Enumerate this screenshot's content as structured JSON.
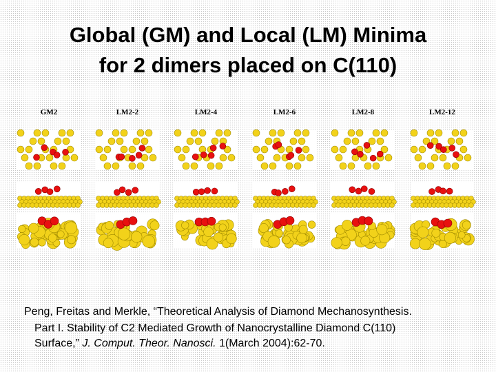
{
  "header": {
    "title_line1": "Global (GM) and Local (LM) Minima",
    "title_line2": "for 2 dimers placed on C(110)"
  },
  "figure": {
    "labels": [
      "GM2",
      "LM2-2",
      "LM2-4",
      "LM2-6",
      "LM2-8",
      "LM2-12"
    ]
  },
  "citation": {
    "line1": "Peng, Freitas and Merkle, “Theoretical Analysis of Diamond Mechanosynthesis.",
    "line2": "Part I. Stability of C2 Mediated Growth of Nanocrystalline Diamond C(110)",
    "line3_before": "Surface,”",
    "line3_journal": "J. Comput. Theor. Nanosci.",
    "line3_after": "1(March 2004):62-70."
  }
}
